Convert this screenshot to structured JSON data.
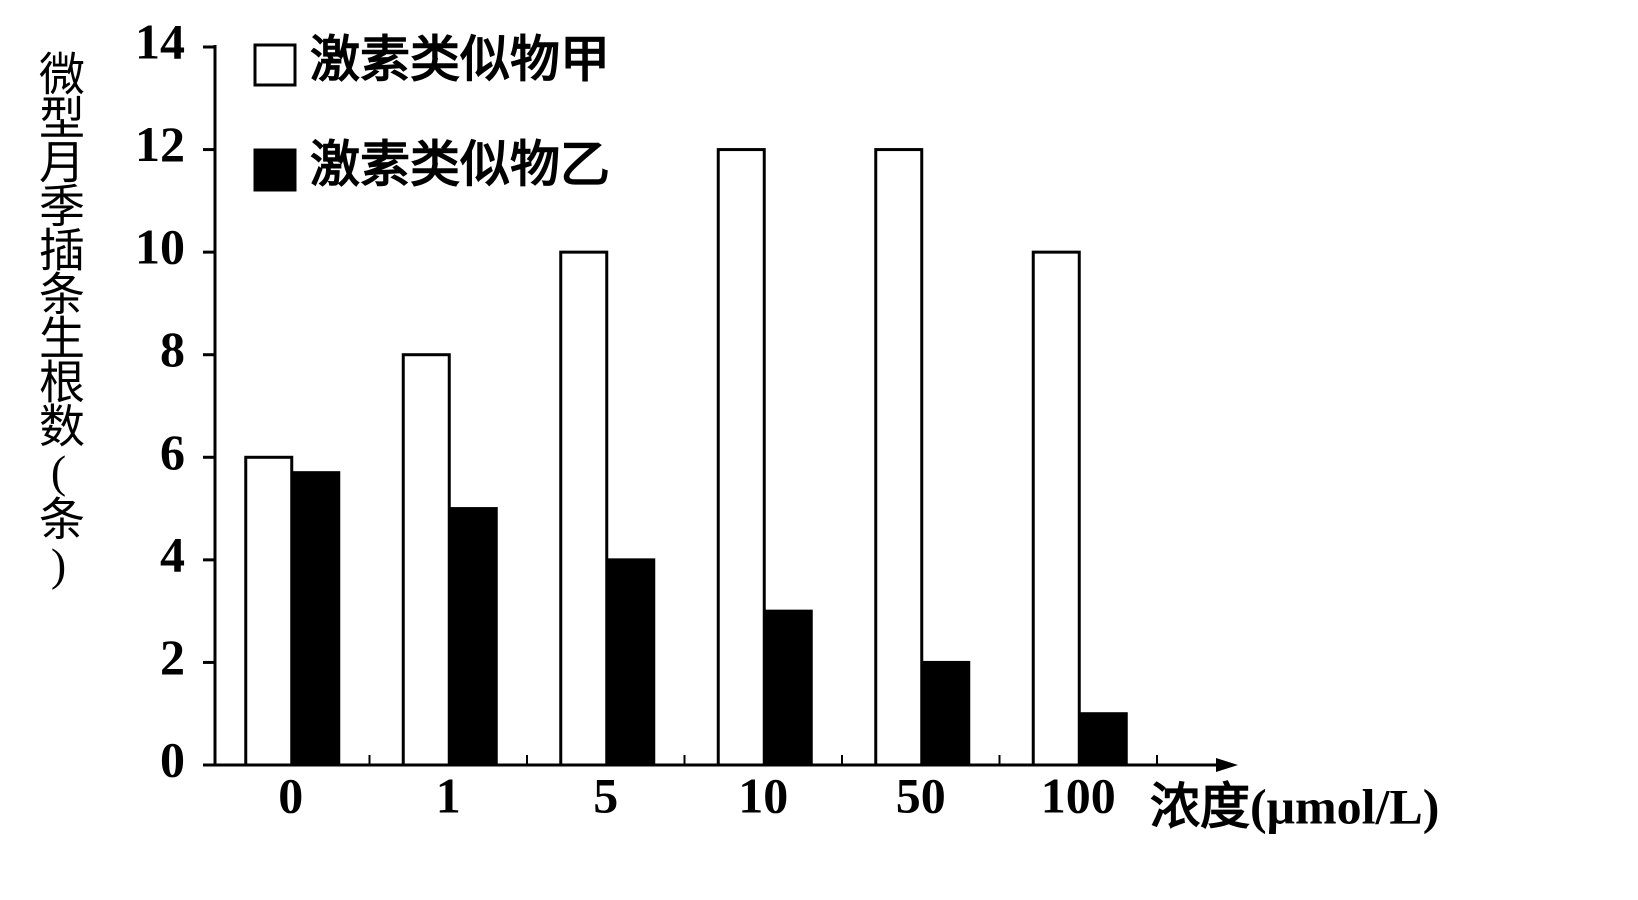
{
  "chart_data": {
    "type": "bar",
    "y_label": "微型月季插条生根数(条)",
    "x_label": "浓度(μmol/L)",
    "categories": [
      "0",
      "1",
      "5",
      "10",
      "50",
      "100"
    ],
    "series": [
      {
        "name": "激素类似物甲",
        "color": "#ffffff",
        "values": [
          6,
          8,
          10,
          12,
          12,
          10
        ]
      },
      {
        "name": "激素类似物乙",
        "color": "#000000",
        "values": [
          5.7,
          5,
          4,
          3,
          2,
          1
        ]
      }
    ],
    "ylim": [
      0,
      14
    ],
    "yticks": [
      0,
      2,
      4,
      6,
      8,
      10,
      12,
      14
    ]
  }
}
